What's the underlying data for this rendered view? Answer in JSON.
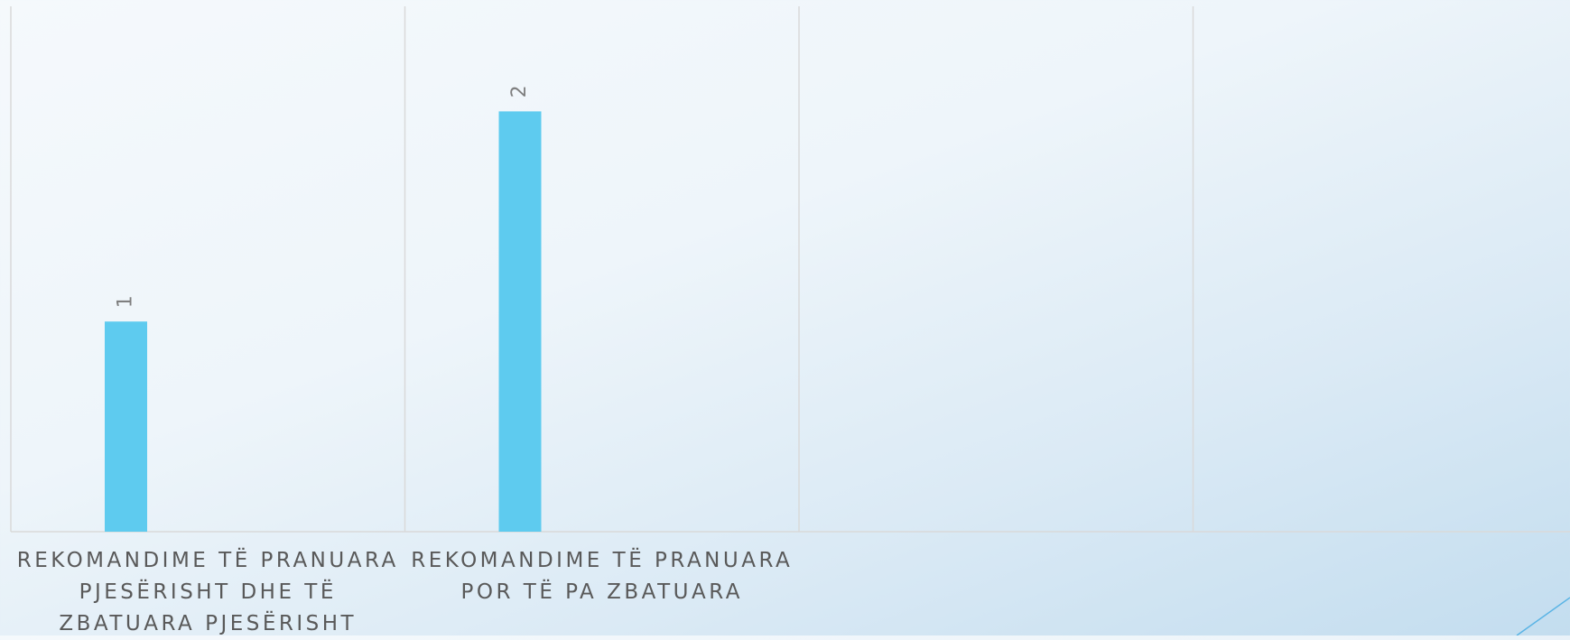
{
  "chart_data": {
    "type": "bar",
    "categories": [
      "REKOMANDIME TË PRANUARA PJESËRISHT DHE TË ZBATUARA PJESËRISHT",
      "REKOMANDIME TË PRANUARA POR TË PA ZBATUARA",
      null,
      null
    ],
    "values": [
      1,
      2,
      null,
      null
    ],
    "color": "#5ecbef",
    "ylim": [
      0,
      2.5
    ],
    "data_labels": true
  }
}
